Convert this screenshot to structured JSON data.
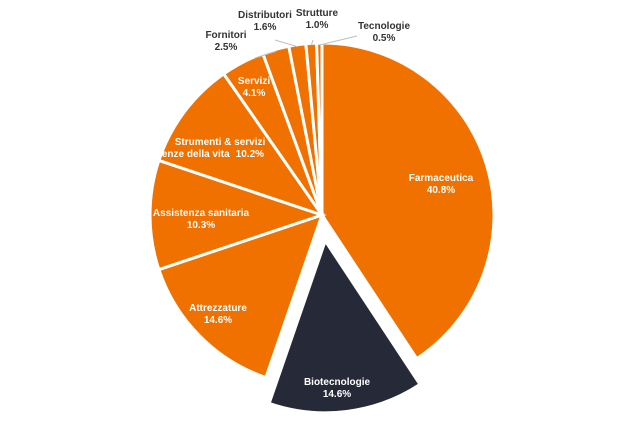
{
  "chart_data": {
    "type": "pie",
    "title": "",
    "slices": [
      {
        "name": "Farmaceutica",
        "value": 40.8,
        "label": "40.8%",
        "color": "#f07000",
        "exploded": false
      },
      {
        "name": "Biotecnologie",
        "value": 14.6,
        "label": "14.6%",
        "color": "#262a38",
        "exploded": true
      },
      {
        "name": "Attrezzature",
        "value": 14.6,
        "label": "14.6%",
        "color": "#f07000",
        "exploded": false
      },
      {
        "name": "Assistenza sanitaria",
        "value": 10.3,
        "label": "10.3%",
        "color": "#f07000",
        "exploded": false
      },
      {
        "name": "Strumenti & servizi scienze della vita",
        "value": 10.2,
        "label": "10.2%",
        "color": "#f07000",
        "exploded": false
      },
      {
        "name": "Servizi",
        "value": 4.1,
        "label": "4.1%",
        "color": "#f07000",
        "exploded": false
      },
      {
        "name": "Fornitori",
        "value": 2.5,
        "label": "2.5%",
        "color": "#f07000",
        "exploded": false
      },
      {
        "name": "Distributori",
        "value": 1.6,
        "label": "1.6%",
        "color": "#f07000",
        "exploded": false
      },
      {
        "name": "Strutture",
        "value": 1.0,
        "label": "1.0%",
        "color": "#f07000",
        "exploded": false
      },
      {
        "name": "Tecnologie",
        "value": 0.5,
        "label": "0.5%",
        "color": "#f07000",
        "exploded": false
      }
    ]
  }
}
